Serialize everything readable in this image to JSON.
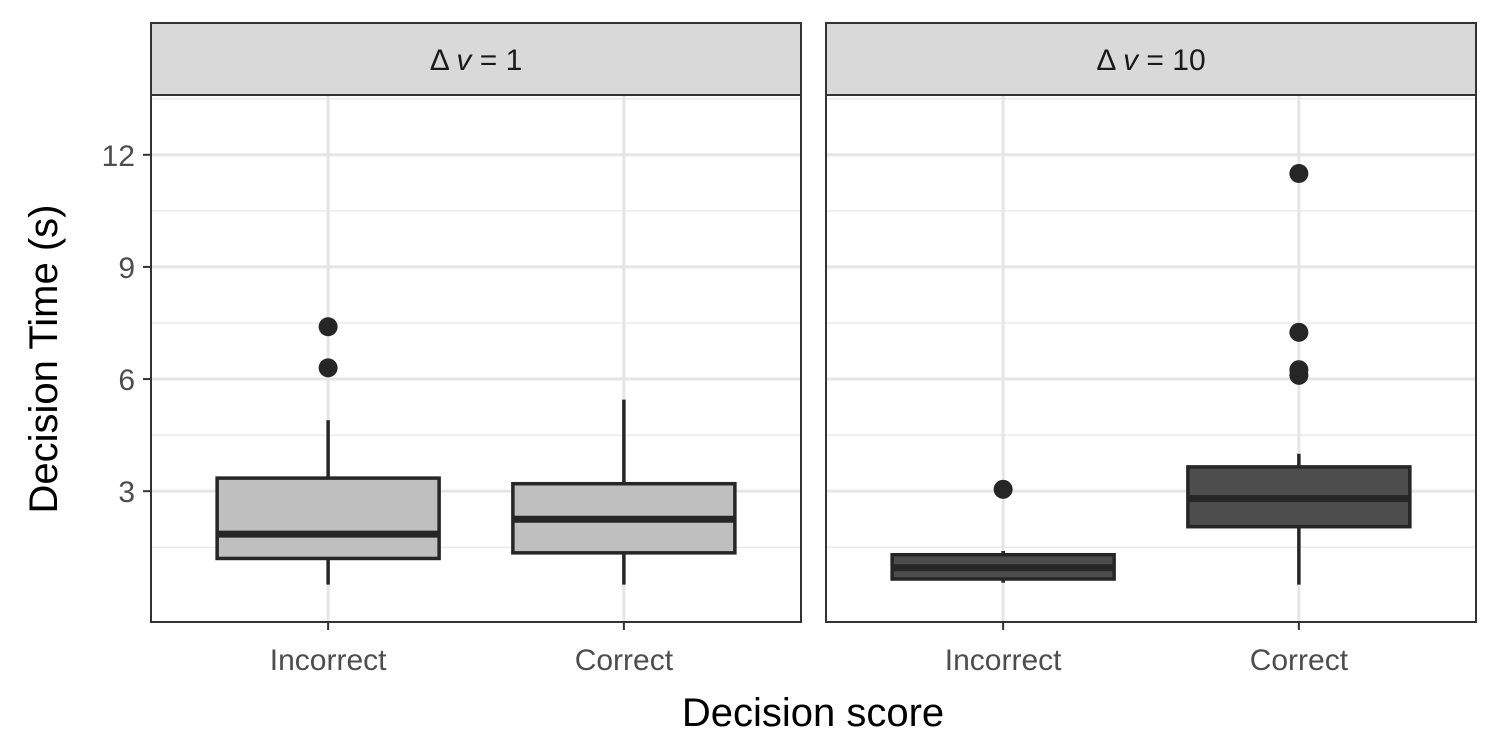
{
  "chart_data": {
    "type": "boxplot",
    "xlabel": "Decision score",
    "ylabel": "Decision Time (s)",
    "ylim": [
      -0.5,
      13.6
    ],
    "yticks": [
      3,
      6,
      9,
      12
    ],
    "categories": [
      "Incorrect",
      "Correct"
    ],
    "grid": true,
    "legend": "none",
    "panels": [
      {
        "delta_symbol": "Δ",
        "var": "v",
        "value_text": " = 1",
        "fill": "#bfbfbf",
        "boxes": [
          {
            "category": "Incorrect",
            "whisker_low": 0.5,
            "q1": 1.2,
            "median": 1.85,
            "q3": 3.35,
            "whisker_high": 4.9,
            "outliers": [
              6.3,
              7.4
            ]
          },
          {
            "category": "Correct",
            "whisker_low": 0.5,
            "q1": 1.35,
            "median": 2.25,
            "q3": 3.2,
            "whisker_high": 5.45,
            "outliers": []
          }
        ]
      },
      {
        "delta_symbol": "Δ",
        "var": "v",
        "value_text": " = 10",
        "fill": "#4d4d4d",
        "boxes": [
          {
            "category": "Incorrect",
            "whisker_low": 0.55,
            "q1": 0.65,
            "median": 0.95,
            "q3": 1.3,
            "whisker_high": 1.4,
            "outliers": [
              3.05
            ]
          },
          {
            "category": "Correct",
            "whisker_low": 0.5,
            "q1": 2.05,
            "median": 2.8,
            "q3": 3.65,
            "whisker_high": 4.0,
            "outliers": [
              6.1,
              6.25,
              7.25,
              11.5
            ]
          }
        ]
      }
    ]
  }
}
